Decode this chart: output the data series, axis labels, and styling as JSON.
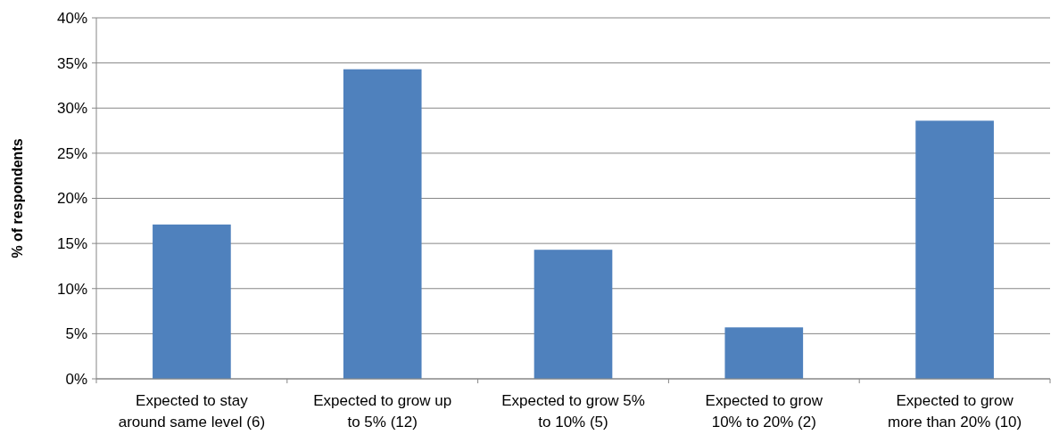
{
  "chart_data": {
    "type": "bar",
    "ylabel": "% of respondents",
    "categories": [
      "Expected to stay around same level (6)",
      "Expected to grow up to 5% (12)",
      "Expected to grow 5% to 10% (5)",
      "Expected to grow 10% to 20% (2)",
      "Expected to grow more than 20% (10)"
    ],
    "values": [
      17.1,
      34.3,
      14.3,
      5.7,
      28.6
    ],
    "color": "#4f81bd",
    "ylim": [
      0,
      40
    ],
    "yticks": [
      {
        "value": 0,
        "label": "0%"
      },
      {
        "value": 5,
        "label": "5%"
      },
      {
        "value": 10,
        "label": "10%"
      },
      {
        "value": 15,
        "label": "15%"
      },
      {
        "value": 20,
        "label": "20%"
      },
      {
        "value": 25,
        "label": "25%"
      },
      {
        "value": 30,
        "label": "30%"
      },
      {
        "value": 35,
        "label": "35%"
      },
      {
        "value": 40,
        "label": "40%"
      }
    ],
    "grid": "y"
  }
}
